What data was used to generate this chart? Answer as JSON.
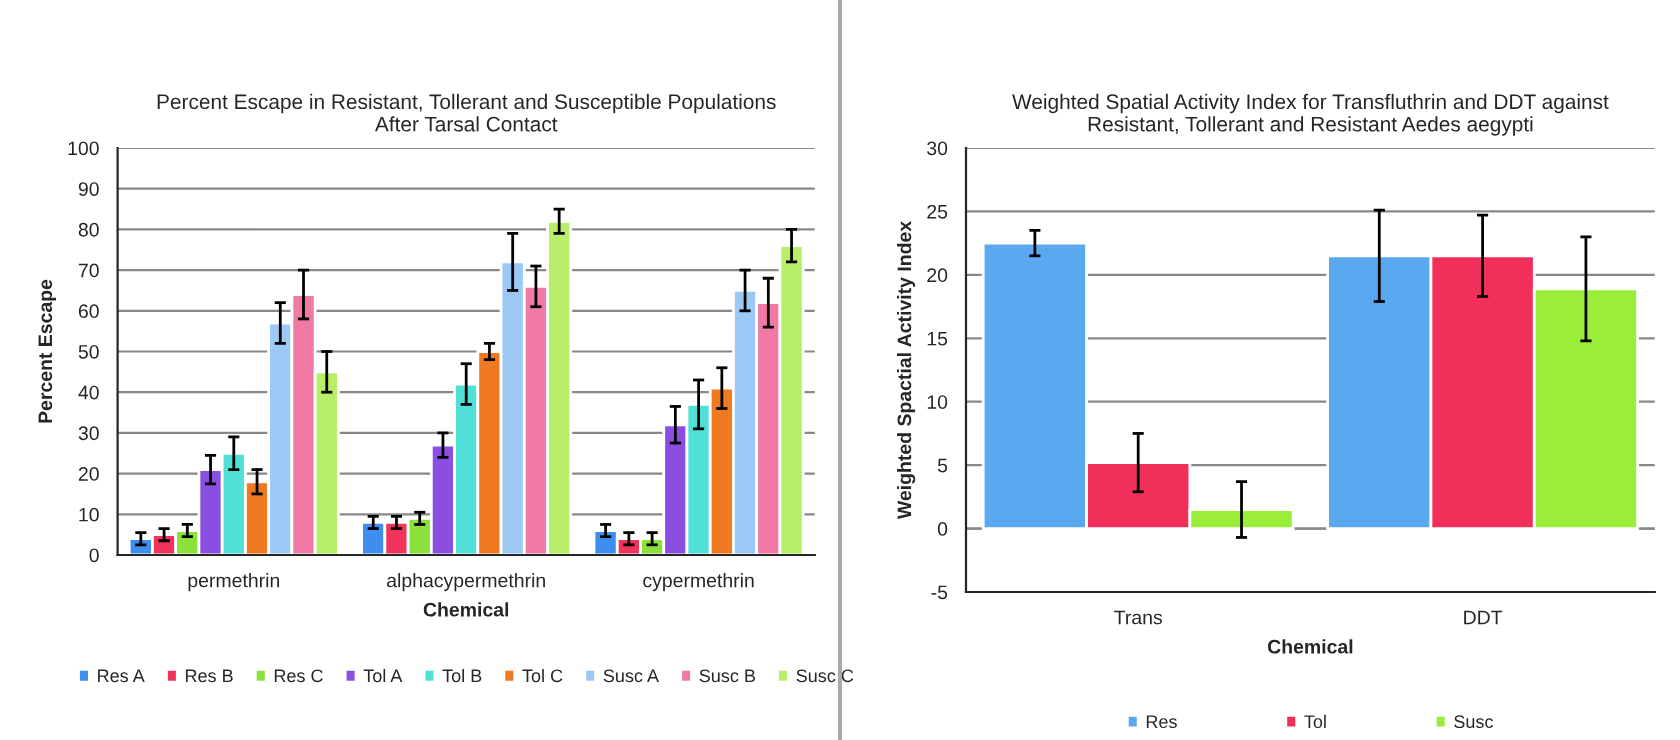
{
  "chart_data": [
    {
      "type": "bar",
      "title": "Percent Escape in Resistant, Tollerant and Susceptible Populations After Tarsal Contact",
      "xlabel": "Chemical",
      "ylabel": "Percent Escape",
      "categories": [
        "permethrin",
        "alphacypermethrin",
        "cypermethrin"
      ],
      "ylim": [
        0,
        100
      ],
      "yticks": [
        0,
        10,
        20,
        30,
        40,
        50,
        60,
        70,
        80,
        90,
        100
      ],
      "grid": "y",
      "legend": "bottom",
      "series": [
        {
          "name": "Res A",
          "color": "#3e8ef0",
          "values": [
            4,
            8,
            6
          ],
          "errors": [
            1.5,
            1.5,
            1.5
          ]
        },
        {
          "name": "Res B",
          "color": "#f0335a",
          "values": [
            5,
            8,
            4
          ],
          "errors": [
            1.5,
            1.5,
            1.5
          ]
        },
        {
          "name": "Res C",
          "color": "#8be03a",
          "values": [
            6,
            9,
            4
          ],
          "errors": [
            1.5,
            1.5,
            1.5
          ]
        },
        {
          "name": "Tol A",
          "color": "#8a4fe0",
          "values": [
            21,
            27,
            32
          ],
          "errors": [
            3.5,
            3,
            4.5
          ]
        },
        {
          "name": "Tol B",
          "color": "#4fe0d8",
          "values": [
            25,
            42,
            37
          ],
          "errors": [
            4,
            5,
            6
          ]
        },
        {
          "name": "Tol C",
          "color": "#f07a22",
          "values": [
            18,
            50,
            41
          ],
          "errors": [
            3,
            2,
            5
          ]
        },
        {
          "name": "Susc A",
          "color": "#9cc8f5",
          "values": [
            57,
            72,
            65
          ],
          "errors": [
            5,
            7,
            5
          ]
        },
        {
          "name": "Susc B",
          "color": "#f07aa5",
          "values": [
            64,
            66,
            62
          ],
          "errors": [
            6,
            5,
            6
          ]
        },
        {
          "name": "Susc C",
          "color": "#b8ee6a",
          "values": [
            45,
            82,
            76
          ],
          "errors": [
            5,
            3,
            4
          ]
        }
      ]
    },
    {
      "type": "bar",
      "title": "Weighted Spatial Activity Index for Transfluthrin and DDT against Resistant, Tollerant and Resistant Aedes aegypti",
      "xlabel": "Chemical",
      "ylabel": "Weighted Spactial Activity Index",
      "categories": [
        "Trans",
        "DDT"
      ],
      "ylim": [
        -5,
        30
      ],
      "yticks": [
        -5,
        0,
        5,
        10,
        15,
        20,
        25,
        30
      ],
      "grid": "y",
      "legend": "bottom",
      "series": [
        {
          "name": "Res",
          "color": "#5aa8f0",
          "values": [
            22.5,
            21.5
          ],
          "errors": [
            1,
            3.6
          ]
        },
        {
          "name": "Tol",
          "color": "#f0305a",
          "values": [
            5.2,
            21.5
          ],
          "errors": [
            2.3,
            3.2
          ]
        },
        {
          "name": "Susc",
          "color": "#9aee3a",
          "values": [
            1.5,
            18.9
          ],
          "errors": [
            2.2,
            4.1
          ]
        }
      ]
    }
  ]
}
